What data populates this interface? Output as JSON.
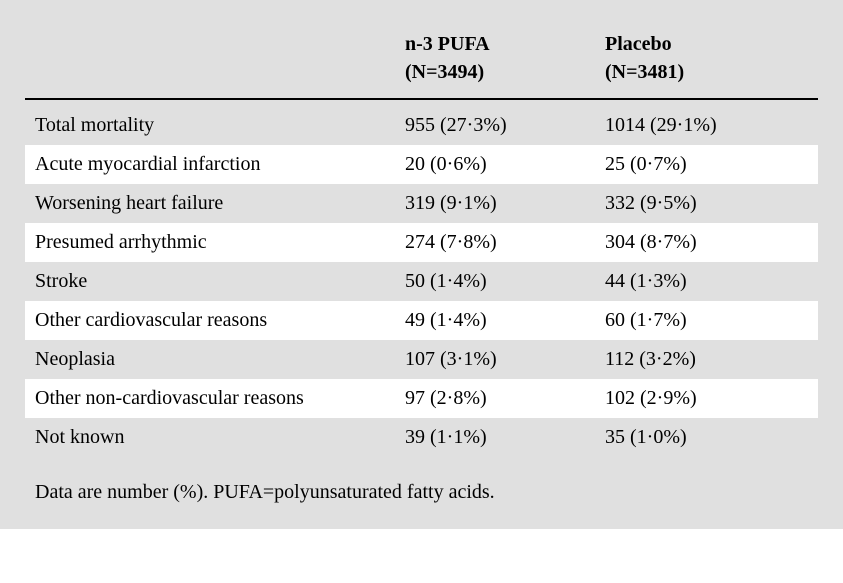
{
  "table": {
    "type": "table",
    "background_color": "#e0e0e0",
    "alt_row_color": "#ffffff",
    "text_color": "#000000",
    "header_border_color": "#000000",
    "header_fontsize": 20,
    "body_fontsize": 20,
    "columns": [
      {
        "label_line1": "n-3 PUFA",
        "label_line2": "(N=3494)"
      },
      {
        "label_line1": "Placebo",
        "label_line2": "(N=3481)"
      }
    ],
    "rows": [
      {
        "label": "Total mortality",
        "col1": "955 (27·3%)",
        "col2": "1014 (29·1%)",
        "bg": "grey"
      },
      {
        "label": "Acute myocardial infarction",
        "col1": "20 (0·6%)",
        "col2": "25 (0·7%)",
        "bg": "white"
      },
      {
        "label": "Worsening heart failure",
        "col1": "319 (9·1%)",
        "col2": "332 (9·5%)",
        "bg": "grey"
      },
      {
        "label": "Presumed arrhythmic",
        "col1": "274 (7·8%)",
        "col2": "304 (8·7%)",
        "bg": "white"
      },
      {
        "label": "Stroke",
        "col1": "50 (1·4%)",
        "col2": "44 (1·3%)",
        "bg": "grey"
      },
      {
        "label": "Other cardiovascular reasons",
        "col1": "49 (1·4%)",
        "col2": "60 (1·7%)",
        "bg": "white"
      },
      {
        "label": "Neoplasia",
        "col1": "107 (3·1%)",
        "col2": "112 (3·2%)",
        "bg": "grey"
      },
      {
        "label": "Other non-cardiovascular reasons",
        "col1": "97 (2·8%)",
        "col2": "102 (2·9%)",
        "bg": "white"
      },
      {
        "label": "Not known",
        "col1": "39 (1·1%)",
        "col2": "35 (1·0%)",
        "bg": "grey"
      }
    ],
    "footnote": "Data are number (%). PUFA=polyunsaturated fatty acids."
  }
}
